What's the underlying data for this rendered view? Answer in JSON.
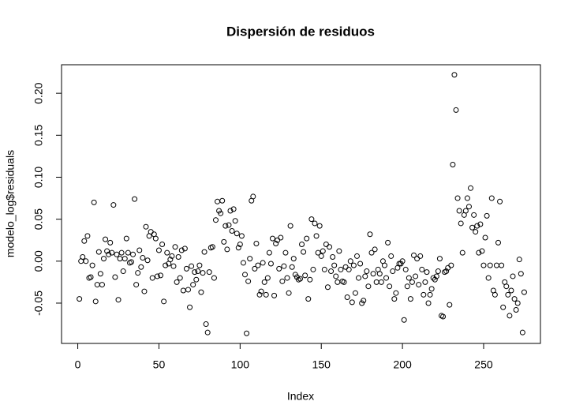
{
  "chart_data": {
    "type": "scatter",
    "title": "Dispersión de residuos",
    "x_label": "Index",
    "y_label": "modelo_log$residuals",
    "xlim": [
      -10,
      285
    ],
    "ylim": [
      -0.098,
      0.234
    ],
    "xticks": [
      0,
      50,
      100,
      150,
      200,
      250
    ],
    "yticks": [
      -0.05,
      {
        "value": 0,
        "label": "0.00"
      },
      0.05,
      {
        "value": 0.1,
        "label": "0.10"
      },
      0.15,
      {
        "value": 0.2,
        "label": "0.20"
      }
    ],
    "color": "#000000",
    "x": [
      1,
      2,
      3,
      4,
      5,
      6,
      7,
      8,
      9,
      10,
      11,
      12,
      13,
      14,
      15,
      16,
      17,
      18,
      19,
      20,
      21,
      22,
      23,
      24,
      25,
      26,
      27,
      28,
      29,
      30,
      31,
      32,
      33,
      34,
      35,
      36,
      37,
      38,
      39,
      40,
      41,
      42,
      43,
      44,
      45,
      46,
      47,
      48,
      49,
      50,
      51,
      52,
      53,
      54,
      55,
      56,
      57,
      58,
      59,
      60,
      61,
      62,
      63,
      64,
      65,
      66,
      67,
      68,
      69,
      70,
      71,
      72,
      73,
      74,
      75,
      76,
      77,
      78,
      79,
      80,
      81,
      82,
      83,
      84,
      85,
      86,
      87,
      88,
      89,
      90,
      91,
      92,
      93,
      94,
      95,
      96,
      97,
      98,
      99,
      100,
      101,
      102,
      103,
      104,
      105,
      106,
      107,
      108,
      109,
      110,
      111,
      112,
      113,
      114,
      115,
      116,
      117,
      118,
      119,
      120,
      121,
      122,
      123,
      124,
      125,
      126,
      127,
      128,
      129,
      130,
      131,
      132,
      133,
      134,
      135,
      136,
      137,
      138,
      139,
      140,
      141,
      142,
      143,
      144,
      145,
      146,
      147,
      148,
      149,
      150,
      151,
      152,
      153,
      154,
      155,
      156,
      157,
      158,
      159,
      160,
      161,
      162,
      163,
      164,
      165,
      166,
      167,
      168,
      169,
      170,
      171,
      172,
      173,
      174,
      175,
      176,
      177,
      178,
      179,
      180,
      181,
      182,
      183,
      184,
      185,
      186,
      187,
      188,
      189,
      190,
      191,
      192,
      193,
      194,
      195,
      196,
      197,
      198,
      199,
      200,
      201,
      202,
      203,
      204,
      205,
      206,
      207,
      208,
      209,
      210,
      211,
      212,
      213,
      214,
      215,
      216,
      217,
      218,
      219,
      220,
      221,
      222,
      223,
      224,
      225,
      226,
      227,
      228,
      229,
      230,
      231,
      232,
      233,
      234,
      235,
      236,
      237,
      238,
      239,
      240,
      241,
      242,
      243,
      244,
      245,
      246,
      247,
      248,
      249,
      250,
      251,
      252,
      253,
      254,
      255,
      256,
      257,
      258,
      259,
      260,
      261,
      262,
      263,
      264,
      265,
      266,
      267,
      268,
      269,
      270,
      271,
      272,
      273,
      274,
      275
    ],
    "values": [
      -0.045,
      0.0,
      0.005,
      0.024,
      0.0,
      0.03,
      -0.02,
      -0.019,
      -0.005,
      0.07,
      -0.048,
      -0.028,
      0.011,
      -0.015,
      -0.028,
      0.003,
      0.026,
      0.012,
      0.008,
      0.022,
      0.01,
      0.067,
      -0.019,
      0.008,
      -0.046,
      0.003,
      0.01,
      -0.012,
      0.003,
      0.027,
      0.01,
      -0.002,
      -0.001,
      0.008,
      0.074,
      -0.028,
      -0.014,
      0.013,
      -0.007,
      0.004,
      -0.036,
      0.041,
      0.001,
      0.03,
      0.035,
      -0.02,
      0.032,
      0.027,
      -0.018,
      0.013,
      -0.017,
      0.02,
      -0.048,
      -0.005,
      0.01,
      -0.003,
      0.002,
      0.006,
      -0.006,
      0.017,
      -0.025,
      0.005,
      -0.02,
      0.013,
      -0.035,
      0.015,
      -0.009,
      -0.034,
      -0.055,
      -0.006,
      -0.028,
      -0.013,
      -0.022,
      -0.012,
      -0.005,
      -0.037,
      -0.014,
      0.011,
      -0.075,
      -0.085,
      -0.013,
      0.016,
      0.017,
      -0.02,
      0.049,
      0.071,
      0.06,
      0.057,
      0.072,
      0.023,
      0.042,
      0.014,
      0.043,
      0.06,
      0.036,
      0.062,
      0.048,
      0.033,
      0.016,
      0.02,
      0.03,
      -0.002,
      -0.016,
      -0.086,
      -0.024,
      0.003,
      0.072,
      0.077,
      -0.009,
      0.021,
      -0.005,
      -0.04,
      -0.036,
      -0.002,
      -0.025,
      -0.04,
      -0.02,
      0.01,
      -0.003,
      0.027,
      -0.041,
      0.021,
      0.025,
      -0.009,
      0.028,
      -0.024,
      -0.006,
      0.01,
      -0.02,
      -0.038,
      0.042,
      -0.007,
      0.003,
      -0.016,
      -0.019,
      -0.022,
      -0.021,
      0.02,
      0.011,
      -0.017,
      0.027,
      -0.045,
      -0.022,
      0.05,
      -0.01,
      0.045,
      0.03,
      0.01,
      0.042,
      0.006,
      0.012,
      -0.01,
      0.02,
      -0.031,
      0.017,
      -0.012,
      0.005,
      -0.005,
      -0.018,
      -0.025,
      0.012,
      -0.01,
      -0.024,
      -0.025,
      -0.007,
      -0.043,
      -0.01,
      0.0,
      -0.049,
      -0.005,
      -0.038,
      0.006,
      -0.02,
      -0.003,
      -0.05,
      -0.047,
      -0.018,
      -0.012,
      -0.03,
      0.032,
      0.01,
      -0.015,
      0.014,
      -0.025,
      -0.01,
      -0.015,
      -0.025,
      0.0,
      -0.005,
      -0.02,
      0.022,
      -0.03,
      0.006,
      -0.012,
      -0.045,
      -0.038,
      -0.008,
      -0.003,
      -0.003,
      0.0,
      -0.07,
      -0.01,
      -0.03,
      -0.02,
      -0.045,
      -0.025,
      0.007,
      -0.018,
      0.003,
      -0.028,
      0.006,
      -0.01,
      -0.04,
      -0.025,
      -0.013,
      -0.05,
      -0.04,
      -0.033,
      -0.02,
      -0.022,
      -0.018,
      -0.012,
      0.003,
      -0.065,
      -0.066,
      -0.013,
      -0.012,
      -0.008,
      -0.052,
      -0.005,
      0.115,
      0.222,
      0.18,
      0.075,
      0.06,
      0.045,
      0.01,
      0.055,
      0.06,
      0.075,
      0.065,
      0.087,
      0.04,
      0.055,
      0.035,
      0.042,
      0.01,
      0.044,
      0.012,
      -0.005,
      0.028,
      0.054,
      -0.02,
      -0.005,
      0.075,
      -0.035,
      -0.04,
      -0.005,
      0.022,
      0.071,
      -0.005,
      -0.055,
      -0.025,
      -0.03,
      -0.04,
      -0.065,
      -0.035,
      -0.018,
      -0.045,
      -0.058,
      -0.05,
      0.002,
      -0.015,
      -0.085,
      -0.037
    ]
  }
}
